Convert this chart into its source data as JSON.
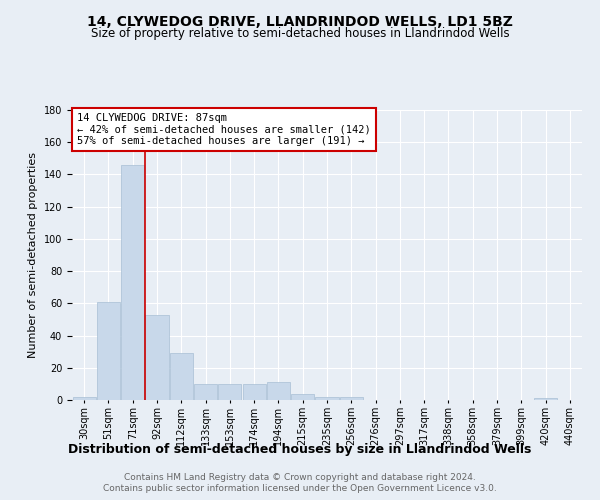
{
  "title": "14, CLYWEDOG DRIVE, LLANDRINDOD WELLS, LD1 5BZ",
  "subtitle": "Size of property relative to semi-detached houses in Llandrindod Wells",
  "xlabel": "Distribution of semi-detached houses by size in Llandrindod Wells",
  "ylabel": "Number of semi-detached properties",
  "categories": [
    "30sqm",
    "51sqm",
    "71sqm",
    "92sqm",
    "112sqm",
    "133sqm",
    "153sqm",
    "174sqm",
    "194sqm",
    "215sqm",
    "235sqm",
    "256sqm",
    "276sqm",
    "297sqm",
    "317sqm",
    "338sqm",
    "358sqm",
    "379sqm",
    "399sqm",
    "420sqm",
    "440sqm"
  ],
  "values": [
    2,
    61,
    146,
    53,
    29,
    10,
    10,
    10,
    11,
    4,
    2,
    2,
    0,
    0,
    0,
    0,
    0,
    0,
    0,
    1,
    0
  ],
  "bar_color": "#c8d8ea",
  "bar_edge_color": "#a8bfd4",
  "red_line_x": 2.5,
  "smaller_pct": "42%",
  "smaller_count": 142,
  "larger_pct": "57%",
  "larger_count": 191,
  "annotation_box_facecolor": "#ffffff",
  "annotation_box_edgecolor": "#cc0000",
  "ylim": [
    0,
    180
  ],
  "yticks": [
    0,
    20,
    40,
    60,
    80,
    100,
    120,
    140,
    160,
    180
  ],
  "footer1": "Contains HM Land Registry data © Crown copyright and database right 2024.",
  "footer2": "Contains public sector information licensed under the Open Government Licence v3.0.",
  "bg_color": "#e8eef5",
  "plot_bg_color": "#e8eef5",
  "grid_color": "#ffffff",
  "title_fontsize": 10,
  "subtitle_fontsize": 8.5,
  "xlabel_fontsize": 9,
  "ylabel_fontsize": 8,
  "tick_fontsize": 7,
  "annotation_fontsize": 7.5,
  "footer_fontsize": 6.5
}
